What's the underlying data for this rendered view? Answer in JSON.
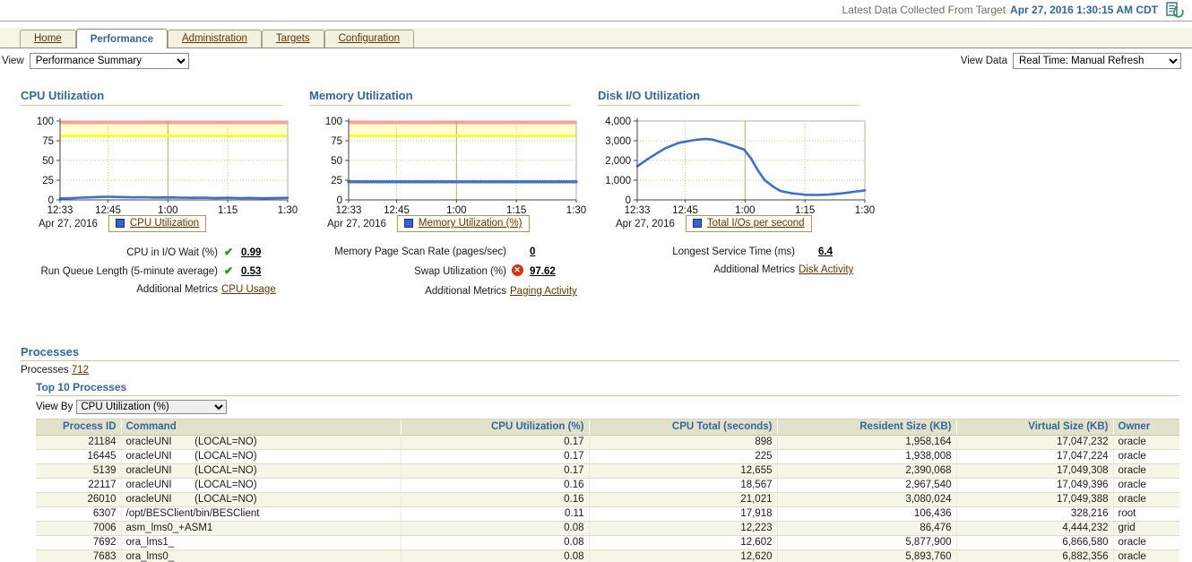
{
  "header": {
    "collected_label": "Latest Data Collected From Target",
    "collected_time": "Apr 27, 2016 1:30:15 AM CDT"
  },
  "tabs": {
    "items": [
      {
        "label": "Home",
        "active": false
      },
      {
        "label": "Performance",
        "active": true
      },
      {
        "label": "Administration",
        "active": false
      },
      {
        "label": "Targets",
        "active": false
      },
      {
        "label": "Configuration",
        "active": false
      }
    ]
  },
  "view_bar": {
    "view_label": "View",
    "view_value": "Performance Summary",
    "view_data_label": "View Data",
    "view_data_value": "Real Time: Manual Refresh"
  },
  "colors": {
    "accent_blue": "#336699",
    "link_brown": "#663300",
    "series_blue": "#3e6fcc",
    "critical_band": "#ff9f99",
    "warning_band": "#ffffcf",
    "warning_line": "#ffff00",
    "grid": "#cccc77"
  },
  "chart_data": [
    {
      "type": "line",
      "title": "CPU Utilization",
      "date_label": "Apr 27, 2016",
      "ylim": [
        0,
        100
      ],
      "yticks": [
        0,
        25,
        50,
        75,
        100
      ],
      "yticklabels": [
        "0",
        "25",
        "50",
        "75",
        "100"
      ],
      "xticks": [
        {
          "label": "12:33",
          "pos": 0
        },
        {
          "label": "12:45",
          "pos": 0.2105
        },
        {
          "label": "1:00",
          "pos": 0.4737,
          "solid": true
        },
        {
          "label": "1:15",
          "pos": 0.7368
        },
        {
          "label": "1:30",
          "pos": 1
        }
      ],
      "grid": "dotted",
      "legend_position": "bottom",
      "bands": [
        {
          "from": 96,
          "to": 100,
          "color": "#ff9f99",
          "label": "critical"
        },
        {
          "from": 81,
          "to": 96,
          "color": "#ffffcf",
          "label": "warning"
        }
      ],
      "threshold_line": {
        "value": 81,
        "color": "#ffff00"
      },
      "series": [
        {
          "name": "CPU Utilization",
          "color": "#3e6fcc",
          "width": 2.6,
          "points": [
            [
              0,
              1.8
            ],
            [
              0.05,
              2.2
            ],
            [
              0.09,
              2.8
            ],
            [
              0.13,
              3.2
            ],
            [
              0.18,
              3.8
            ],
            [
              0.21,
              4.0
            ],
            [
              0.26,
              3.6
            ],
            [
              0.32,
              3.2
            ],
            [
              0.37,
              3.4
            ],
            [
              0.42,
              2.9
            ],
            [
              0.47,
              3.2
            ],
            [
              0.53,
              2.8
            ],
            [
              0.58,
              2.6
            ],
            [
              0.63,
              2.8
            ],
            [
              0.68,
              2.4
            ],
            [
              0.74,
              2.6
            ],
            [
              0.79,
              2.3
            ],
            [
              0.84,
              2.5
            ],
            [
              0.89,
              2.1
            ],
            [
              0.95,
              2.4
            ],
            [
              1,
              2.6
            ]
          ]
        }
      ]
    },
    {
      "type": "line",
      "title": "Memory Utilization",
      "date_label": "Apr 27, 2016",
      "ylim": [
        0,
        100
      ],
      "yticks": [
        0,
        25,
        50,
        75,
        100
      ],
      "yticklabels": [
        "0",
        "25",
        "50",
        "75",
        "100"
      ],
      "xticks": [
        {
          "label": "12:33",
          "pos": 0
        },
        {
          "label": "12:45",
          "pos": 0.2105
        },
        {
          "label": "1:00",
          "pos": 0.4737,
          "solid": true
        },
        {
          "label": "1:15",
          "pos": 0.7368
        },
        {
          "label": "1:30",
          "pos": 1
        }
      ],
      "grid": "dotted",
      "legend_position": "bottom",
      "bands": [
        {
          "from": 96,
          "to": 100,
          "color": "#ff9f99",
          "label": "critical"
        },
        {
          "from": 81,
          "to": 96,
          "color": "#ffffcf",
          "label": "warning"
        }
      ],
      "threshold_line": {
        "value": 81,
        "color": "#ffff00"
      },
      "series": [
        {
          "name": "Memory Utilization (%)",
          "color": "#3e6fcc",
          "width": 3.4,
          "points": [
            [
              0,
              23
            ],
            [
              0.25,
              23
            ],
            [
              0.5,
              23
            ],
            [
              0.75,
              23
            ],
            [
              1,
              23
            ]
          ]
        }
      ]
    },
    {
      "type": "line",
      "title": "Disk I/O Utilization",
      "date_label": "Apr 27, 2016",
      "ylim": [
        0,
        4000
      ],
      "yticks": [
        0,
        1000,
        2000,
        3000,
        4000
      ],
      "yticklabels": [
        "0",
        "1,000",
        "2,000",
        "3,000",
        "4,000"
      ],
      "xticks": [
        {
          "label": "12:33",
          "pos": 0
        },
        {
          "label": "12:45",
          "pos": 0.2105
        },
        {
          "label": "1:00",
          "pos": 0.4737,
          "solid": true
        },
        {
          "label": "1:15",
          "pos": 0.7368
        },
        {
          "label": "1:30",
          "pos": 1
        }
      ],
      "grid": "dotted",
      "legend_position": "bottom",
      "bands": [],
      "series": [
        {
          "name": "Total I/Os per second",
          "color": "#3e6fcc",
          "width": 2.6,
          "points": [
            [
              0,
              1700
            ],
            [
              0.05,
              2100
            ],
            [
              0.12,
              2600
            ],
            [
              0.18,
              2880
            ],
            [
              0.21,
              2950
            ],
            [
              0.26,
              3050
            ],
            [
              0.3,
              3090
            ],
            [
              0.33,
              3060
            ],
            [
              0.38,
              2900
            ],
            [
              0.42,
              2750
            ],
            [
              0.47,
              2550
            ],
            [
              0.5,
              2100
            ],
            [
              0.53,
              1500
            ],
            [
              0.56,
              1000
            ],
            [
              0.6,
              650
            ],
            [
              0.63,
              450
            ],
            [
              0.68,
              330
            ],
            [
              0.74,
              260
            ],
            [
              0.79,
              250
            ],
            [
              0.84,
              270
            ],
            [
              0.9,
              330
            ],
            [
              0.95,
              410
            ],
            [
              1,
              480
            ]
          ]
        }
      ]
    }
  ],
  "panels": [
    {
      "metrics": [
        {
          "label": "CPU in I/O Wait (%)",
          "status": "ok",
          "value": "0.99"
        },
        {
          "label": "Run Queue Length (5-minute average)",
          "status": "ok",
          "value": "0.53"
        }
      ],
      "additional_label": "Additional Metrics",
      "additional_link": "CPU Usage"
    },
    {
      "metrics": [
        {
          "label": "Memory Page Scan Rate (pages/sec)",
          "status": "none",
          "value": "0"
        },
        {
          "label": "Swap Utilization (%)",
          "status": "error",
          "value": "97.62"
        }
      ],
      "additional_label": "Additional Metrics",
      "additional_link": "Paging Activity"
    },
    {
      "metrics": [
        {
          "label": "Longest Service Time (ms)",
          "status": "none",
          "value": "6.4"
        }
      ],
      "additional_label": "Additional Metrics",
      "additional_link": "Disk Activity"
    }
  ],
  "processes": {
    "section_title": "Processes",
    "count_label": "Processes",
    "count_value": "712",
    "subsection_title": "Top 10 Processes",
    "view_by_label": "View By",
    "view_by_value": "CPU Utilization (%)",
    "table": {
      "columns": [
        "Process ID",
        "Command",
        "CPU Utilization (%)",
        "CPU Total (seconds)",
        "Resident Size (KB)",
        "Virtual Size (KB)",
        "Owner"
      ],
      "rows": [
        [
          "21184",
          "oracleUNI        (LOCAL=NO)",
          "0.17",
          "898",
          "1,958,164",
          "17,047,232",
          "oracle"
        ],
        [
          "16445",
          "oracleUNI        (LOCAL=NO)",
          "0.17",
          "225",
          "1,938,008",
          "17,047,224",
          "oracle"
        ],
        [
          "5139",
          "oracleUNI        (LOCAL=NO)",
          "0.17",
          "12,655",
          "2,390,068",
          "17,049,308",
          "oracle"
        ],
        [
          "22117",
          "oracleUNI        (LOCAL=NO)",
          "0.16",
          "18,567",
          "2,967,540",
          "17,049,396",
          "oracle"
        ],
        [
          "26010",
          "oracleUNI        (LOCAL=NO)",
          "0.16",
          "21,021",
          "3,080,024",
          "17,049,388",
          "oracle"
        ],
        [
          "6307",
          "/opt/BESClient/bin/BESClient",
          "0.11",
          "17,918",
          "106,436",
          "328,216",
          "root"
        ],
        [
          "7006",
          "asm_lms0_+ASM1",
          "0.08",
          "12,223",
          "86,476",
          "4,444,232",
          "grid"
        ],
        [
          "7692",
          "ora_lms1_",
          "0.08",
          "12,602",
          "5,877,900",
          "6,866,580",
          "oracle"
        ],
        [
          "7683",
          "ora_lms0_",
          "0.08",
          "12,620",
          "5,893,760",
          "6,882,356",
          "oracle"
        ]
      ]
    }
  }
}
